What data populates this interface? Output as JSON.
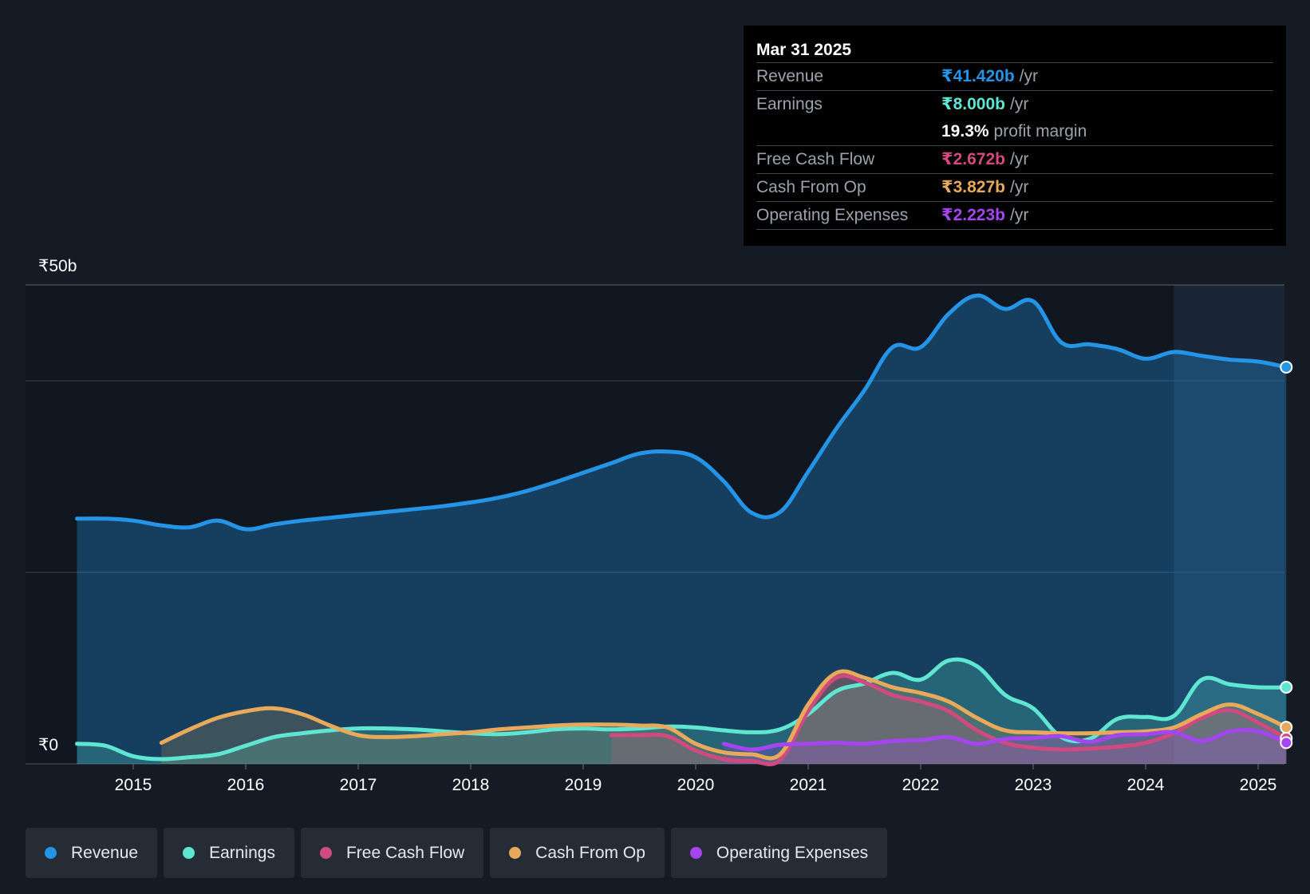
{
  "colors": {
    "revenue": "#2394e6",
    "earnings": "#5ee6d2",
    "fcf": "#d04a80",
    "cfo": "#e8aa5a",
    "opex": "#a545f0"
  },
  "tooltip": {
    "date": "Mar 31 2025",
    "rows": [
      {
        "label": "Revenue",
        "value": "₹41.420b",
        "unit": "/yr"
      },
      {
        "label": "Earnings",
        "value": "₹8.000b",
        "unit": "/yr"
      },
      {
        "label": "",
        "value": "19.3%",
        "unit": "profit margin"
      },
      {
        "label": "Free Cash Flow",
        "value": "₹2.672b",
        "unit": "/yr"
      },
      {
        "label": "Cash From Op",
        "value": "₹3.827b",
        "unit": "/yr"
      },
      {
        "label": "Operating Expenses",
        "value": "₹2.223b",
        "unit": "/yr"
      }
    ]
  },
  "legend": [
    {
      "label": "Revenue",
      "key": "revenue"
    },
    {
      "label": "Earnings",
      "key": "earnings"
    },
    {
      "label": "Free Cash Flow",
      "key": "fcf"
    },
    {
      "label": "Cash From Op",
      "key": "cfo"
    },
    {
      "label": "Operating Expenses",
      "key": "opex"
    }
  ],
  "chart_data": {
    "type": "area",
    "title": "",
    "y_top_label": "₹50b",
    "y_bottom_label": "₹0",
    "ylim": [
      0,
      50
    ],
    "xlim": [
      2014.5,
      2025.25
    ],
    "x_ticks": [
      2015,
      2016,
      2017,
      2018,
      2019,
      2020,
      2021,
      2022,
      2023,
      2024,
      2025
    ],
    "x_tick_labels": [
      "2015",
      "2016",
      "2017",
      "2018",
      "2019",
      "2020",
      "2021",
      "2022",
      "2023",
      "2024",
      "2025"
    ],
    "gridlines": [
      0,
      20,
      40,
      50
    ],
    "highlight_start": 2024.25,
    "series": [
      {
        "name": "Revenue",
        "key": "revenue",
        "points": [
          [
            2014.5,
            25.6
          ],
          [
            2014.75,
            25.6
          ],
          [
            2015.0,
            25.4
          ],
          [
            2015.25,
            24.9
          ],
          [
            2015.5,
            24.7
          ],
          [
            2015.75,
            25.4
          ],
          [
            2016.0,
            24.5
          ],
          [
            2016.25,
            25.0
          ],
          [
            2016.5,
            25.4
          ],
          [
            2016.75,
            25.7
          ],
          [
            2017.0,
            26.0
          ],
          [
            2017.25,
            26.3
          ],
          [
            2017.5,
            26.6
          ],
          [
            2017.75,
            26.9
          ],
          [
            2018.0,
            27.3
          ],
          [
            2018.25,
            27.8
          ],
          [
            2018.5,
            28.5
          ],
          [
            2018.75,
            29.4
          ],
          [
            2019.0,
            30.4
          ],
          [
            2019.25,
            31.4
          ],
          [
            2019.5,
            32.4
          ],
          [
            2019.75,
            32.6
          ],
          [
            2020.0,
            32.0
          ],
          [
            2020.25,
            29.5
          ],
          [
            2020.5,
            26.2
          ],
          [
            2020.75,
            26.3
          ],
          [
            2021.0,
            30.5
          ],
          [
            2021.25,
            35.0
          ],
          [
            2021.5,
            39.0
          ],
          [
            2021.75,
            43.5
          ],
          [
            2022.0,
            43.5
          ],
          [
            2022.25,
            47.0
          ],
          [
            2022.5,
            48.9
          ],
          [
            2022.75,
            47.5
          ],
          [
            2023.0,
            48.3
          ],
          [
            2023.25,
            44.0
          ],
          [
            2023.5,
            43.8
          ],
          [
            2023.75,
            43.3
          ],
          [
            2024.0,
            42.3
          ],
          [
            2024.25,
            43.0
          ],
          [
            2024.5,
            42.6
          ],
          [
            2024.75,
            42.2
          ],
          [
            2025.0,
            42.0
          ],
          [
            2025.25,
            41.42
          ]
        ]
      },
      {
        "name": "Earnings",
        "key": "earnings",
        "points": [
          [
            2014.5,
            2.1
          ],
          [
            2014.75,
            1.9
          ],
          [
            2015.0,
            0.8
          ],
          [
            2015.25,
            0.5
          ],
          [
            2015.5,
            0.7
          ],
          [
            2015.75,
            1.0
          ],
          [
            2016.0,
            1.9
          ],
          [
            2016.25,
            2.8
          ],
          [
            2016.5,
            3.2
          ],
          [
            2016.75,
            3.5
          ],
          [
            2017.0,
            3.7
          ],
          [
            2017.25,
            3.7
          ],
          [
            2017.5,
            3.6
          ],
          [
            2017.75,
            3.4
          ],
          [
            2018.0,
            3.2
          ],
          [
            2018.25,
            3.1
          ],
          [
            2018.5,
            3.3
          ],
          [
            2018.75,
            3.6
          ],
          [
            2019.0,
            3.7
          ],
          [
            2019.25,
            3.6
          ],
          [
            2019.5,
            3.7
          ],
          [
            2019.75,
            3.9
          ],
          [
            2020.0,
            3.8
          ],
          [
            2020.25,
            3.5
          ],
          [
            2020.5,
            3.3
          ],
          [
            2020.75,
            3.6
          ],
          [
            2021.0,
            5.2
          ],
          [
            2021.25,
            7.6
          ],
          [
            2021.5,
            8.4
          ],
          [
            2021.75,
            9.5
          ],
          [
            2022.0,
            8.8
          ],
          [
            2022.25,
            10.8
          ],
          [
            2022.5,
            10.2
          ],
          [
            2022.75,
            7.2
          ],
          [
            2023.0,
            5.8
          ],
          [
            2023.25,
            2.8
          ],
          [
            2023.5,
            2.6
          ],
          [
            2023.75,
            4.7
          ],
          [
            2024.0,
            4.9
          ],
          [
            2024.25,
            5.0
          ],
          [
            2024.5,
            8.8
          ],
          [
            2024.75,
            8.3
          ],
          [
            2025.0,
            8.0
          ],
          [
            2025.25,
            8.0
          ]
        ]
      },
      {
        "name": "Free Cash Flow",
        "key": "fcf",
        "points": [
          [
            2019.25,
            3.0
          ],
          [
            2019.5,
            3.0
          ],
          [
            2019.75,
            2.9
          ],
          [
            2020.0,
            1.4
          ],
          [
            2020.25,
            0.5
          ],
          [
            2020.5,
            0.3
          ],
          [
            2020.75,
            0.4
          ],
          [
            2021.0,
            5.5
          ],
          [
            2021.25,
            9.0
          ],
          [
            2021.5,
            8.5
          ],
          [
            2021.75,
            7.2
          ],
          [
            2022.0,
            6.5
          ],
          [
            2022.25,
            5.5
          ],
          [
            2022.5,
            3.5
          ],
          [
            2022.75,
            2.2
          ],
          [
            2023.0,
            1.7
          ],
          [
            2023.25,
            1.5
          ],
          [
            2023.5,
            1.6
          ],
          [
            2023.75,
            1.8
          ],
          [
            2024.0,
            2.2
          ],
          [
            2024.25,
            3.2
          ],
          [
            2024.5,
            4.8
          ],
          [
            2024.75,
            5.6
          ],
          [
            2025.0,
            4.3
          ],
          [
            2025.25,
            2.672
          ]
        ]
      },
      {
        "name": "Cash From Op",
        "key": "cfo",
        "points": [
          [
            2015.25,
            2.2
          ],
          [
            2015.5,
            3.6
          ],
          [
            2015.75,
            4.8
          ],
          [
            2016.0,
            5.5
          ],
          [
            2016.25,
            5.8
          ],
          [
            2016.5,
            5.2
          ],
          [
            2016.75,
            4.0
          ],
          [
            2017.0,
            3.0
          ],
          [
            2017.25,
            2.8
          ],
          [
            2017.5,
            2.9
          ],
          [
            2017.75,
            3.1
          ],
          [
            2018.0,
            3.3
          ],
          [
            2018.25,
            3.6
          ],
          [
            2018.5,
            3.8
          ],
          [
            2018.75,
            4.0
          ],
          [
            2019.0,
            4.1
          ],
          [
            2019.25,
            4.1
          ],
          [
            2019.5,
            4.0
          ],
          [
            2019.75,
            3.8
          ],
          [
            2020.0,
            2.1
          ],
          [
            2020.25,
            1.2
          ],
          [
            2020.5,
            1.0
          ],
          [
            2020.75,
            1.0
          ],
          [
            2021.0,
            6.2
          ],
          [
            2021.25,
            9.5
          ],
          [
            2021.5,
            9.0
          ],
          [
            2021.75,
            8.0
          ],
          [
            2022.0,
            7.4
          ],
          [
            2022.25,
            6.5
          ],
          [
            2022.5,
            4.8
          ],
          [
            2022.75,
            3.5
          ],
          [
            2023.0,
            3.3
          ],
          [
            2023.25,
            3.2
          ],
          [
            2023.5,
            3.2
          ],
          [
            2023.75,
            3.3
          ],
          [
            2024.0,
            3.4
          ],
          [
            2024.25,
            3.8
          ],
          [
            2024.5,
            5.2
          ],
          [
            2024.75,
            6.2
          ],
          [
            2025.0,
            5.2
          ],
          [
            2025.25,
            3.827
          ]
        ]
      },
      {
        "name": "Operating Expenses",
        "key": "opex",
        "points": [
          [
            2020.25,
            2.1
          ],
          [
            2020.5,
            1.5
          ],
          [
            2020.75,
            2.0
          ],
          [
            2021.0,
            2.1
          ],
          [
            2021.25,
            2.2
          ],
          [
            2021.5,
            2.1
          ],
          [
            2021.75,
            2.4
          ],
          [
            2022.0,
            2.5
          ],
          [
            2022.25,
            2.8
          ],
          [
            2022.5,
            2.1
          ],
          [
            2022.75,
            2.6
          ],
          [
            2023.0,
            2.7
          ],
          [
            2023.25,
            2.9
          ],
          [
            2023.5,
            2.3
          ],
          [
            2023.75,
            3.0
          ],
          [
            2024.0,
            3.1
          ],
          [
            2024.25,
            3.3
          ],
          [
            2024.5,
            2.4
          ],
          [
            2024.75,
            3.4
          ],
          [
            2025.0,
            3.4
          ],
          [
            2025.25,
            2.223
          ]
        ]
      }
    ]
  }
}
